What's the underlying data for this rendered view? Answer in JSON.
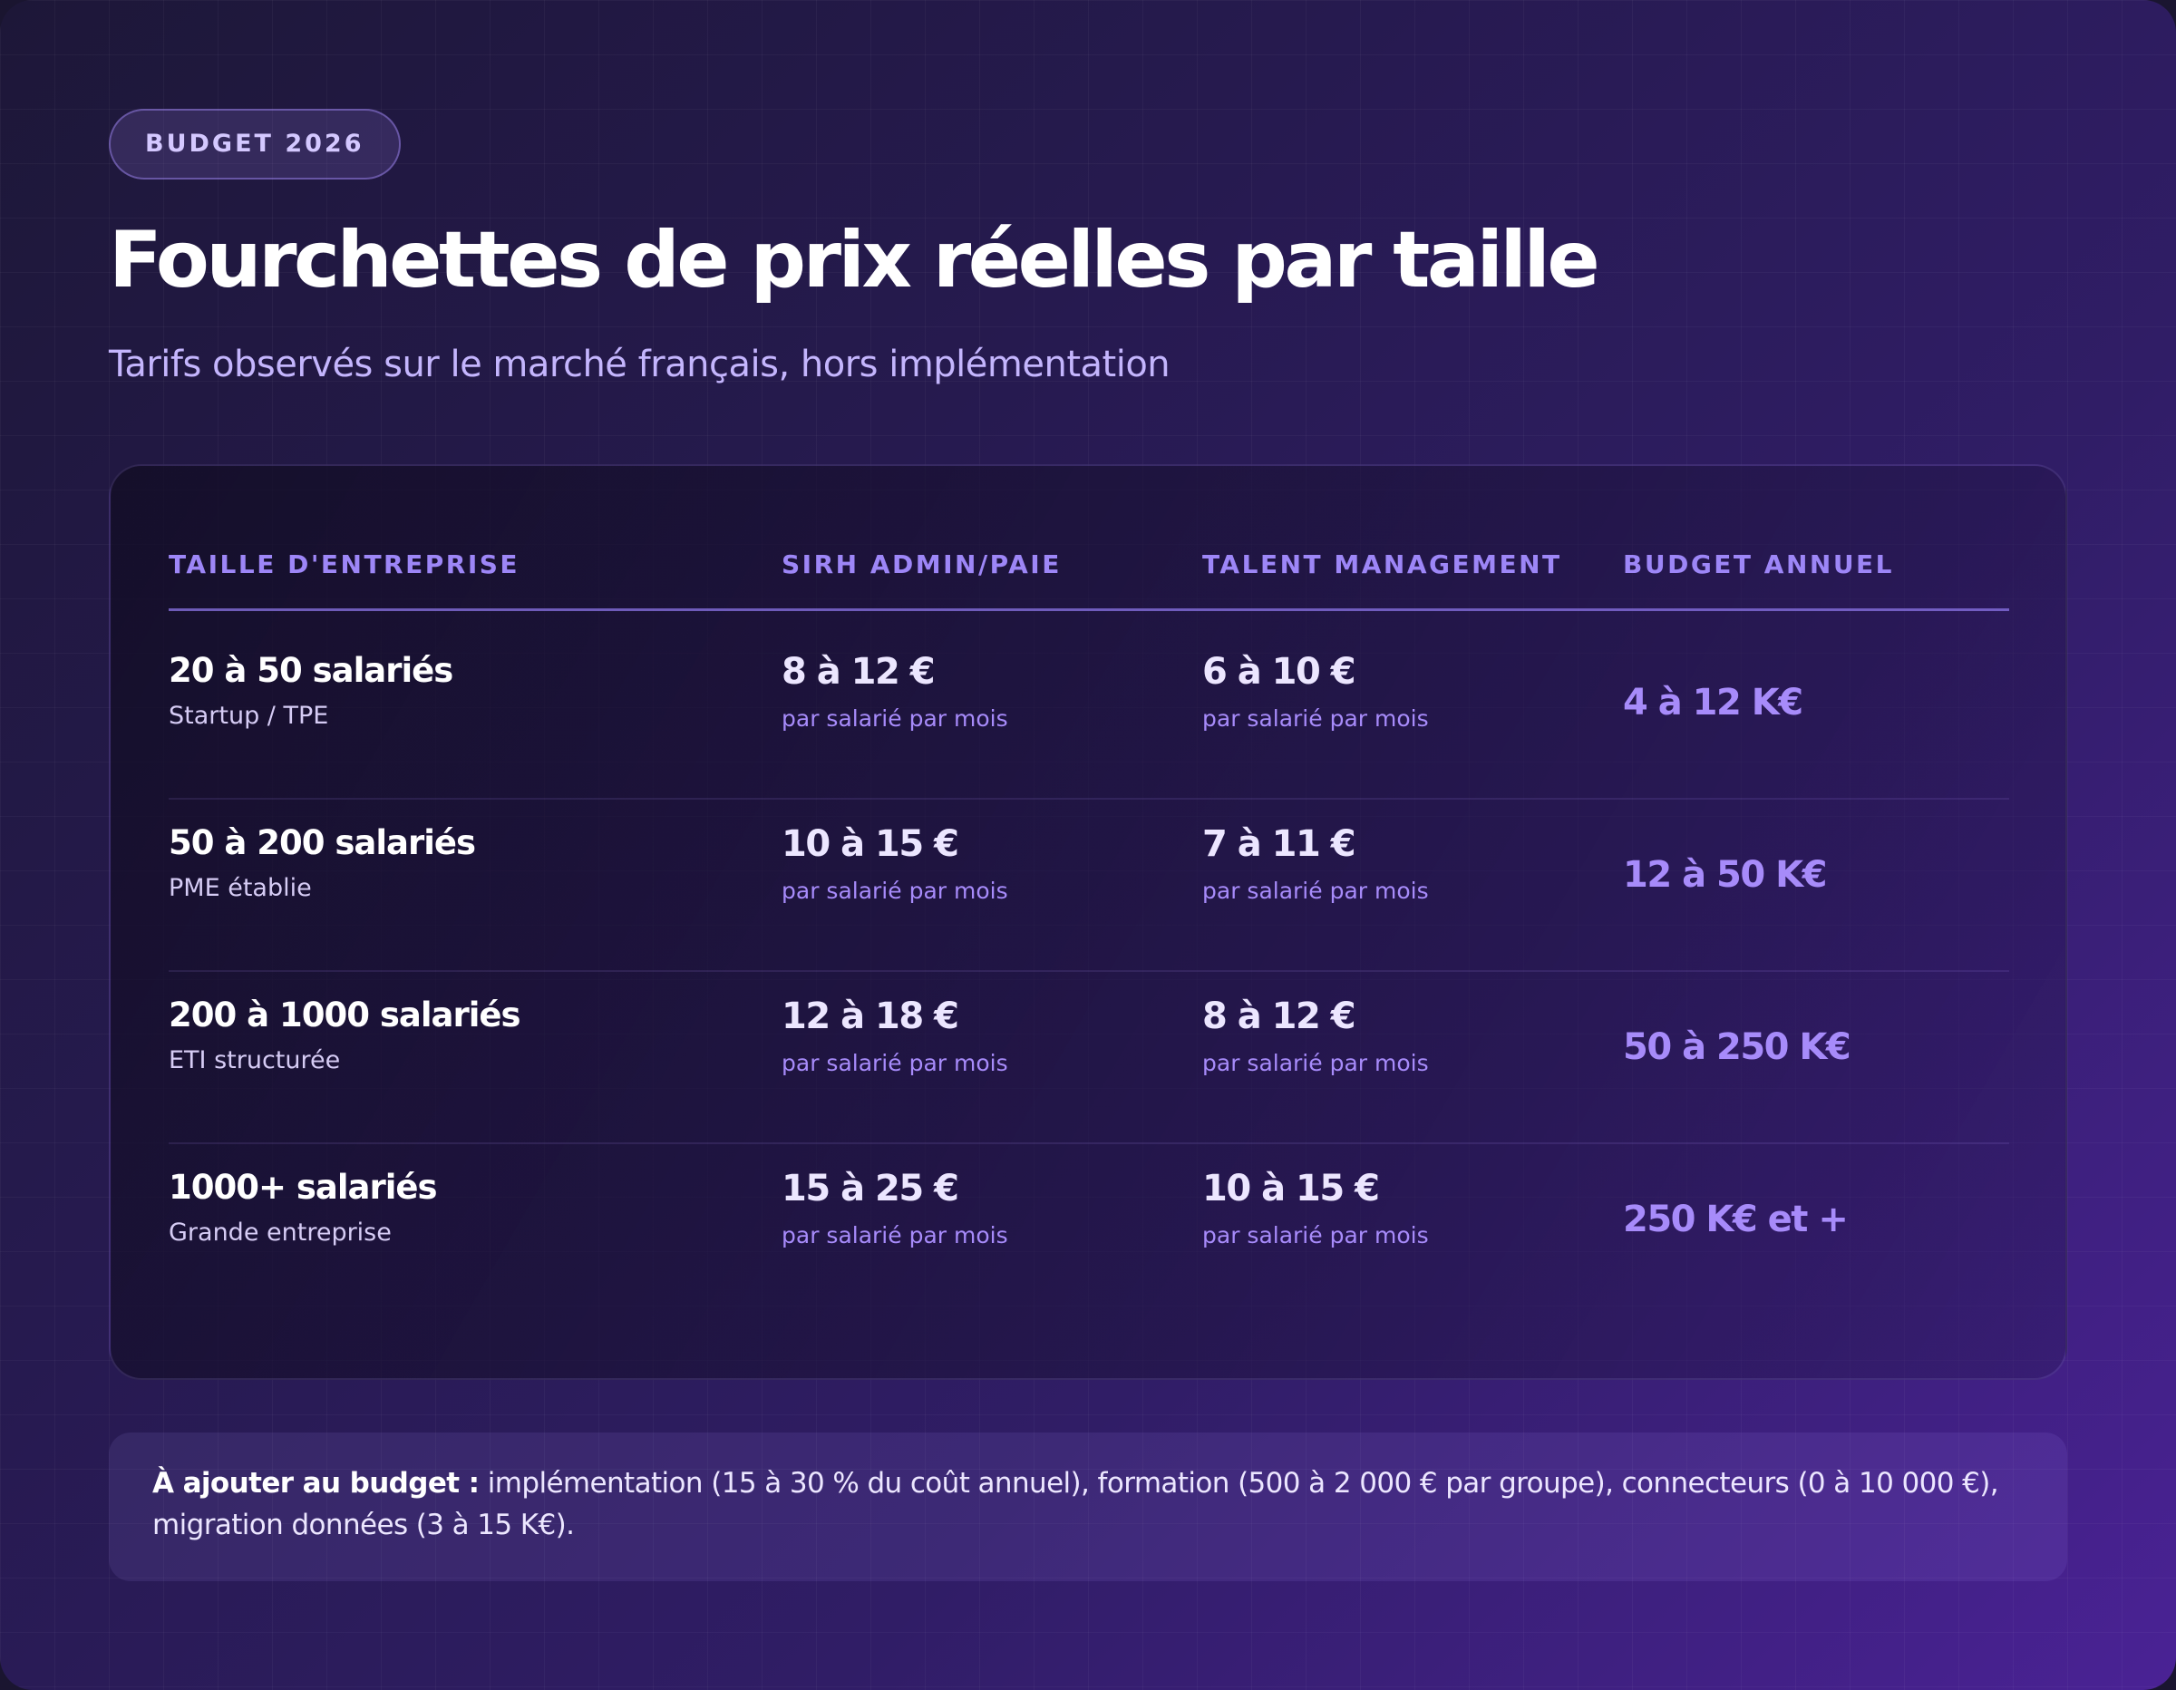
{
  "badge": "BUDGET 2026",
  "title": "Fourchettes de prix réelles par taille",
  "subtitle": "Tarifs observés sur le marché français, hors implémentation",
  "table": {
    "headers": [
      "TAILLE D'ENTREPRISE",
      "SIRH ADMIN/PAIE",
      "TALENT MANAGEMENT",
      "BUDGET ANNUEL"
    ],
    "rows": [
      {
        "size": "20 à 50 salariés",
        "segment": "Startup / TPE",
        "sirh": "8 à 12 €",
        "sirh_unit": "par salarié par mois",
        "talent": "6 à 10 €",
        "talent_unit": "par salarié par mois",
        "budget": "4 à 12 K€"
      },
      {
        "size": "50 à 200 salariés",
        "segment": "PME établie",
        "sirh": "10 à 15 €",
        "sirh_unit": "par salarié par mois",
        "talent": "7 à 11 €",
        "talent_unit": "par salarié par mois",
        "budget": "12 à 50 K€"
      },
      {
        "size": "200 à 1000 salariés",
        "segment": "ETI structurée",
        "sirh": "12 à 18 €",
        "sirh_unit": "par salarié par mois",
        "talent": "8 à 12 €",
        "talent_unit": "par salarié par mois",
        "budget": "50 à 250 K€"
      },
      {
        "size": "1000+ salariés",
        "segment": "Grande entreprise",
        "sirh": "15 à 25 €",
        "sirh_unit": "par salarié par mois",
        "talent": "10 à 15 €",
        "talent_unit": "par salarié par mois",
        "budget": "250 K€ et +"
      }
    ]
  },
  "note": {
    "label": "À ajouter au budget :",
    "text": "implémentation (15 à 30 % du coût annuel), formation (500 à 2 000 € par groupe), connecteurs (0 à 10 000 €), migration données (3 à 15 K€)."
  },
  "colors": {
    "accent": "#a78bfa",
    "header": "#9d86f7",
    "subtitle": "#c4b5fd",
    "background_start": "#1d1738",
    "background_end": "#4a2295"
  }
}
